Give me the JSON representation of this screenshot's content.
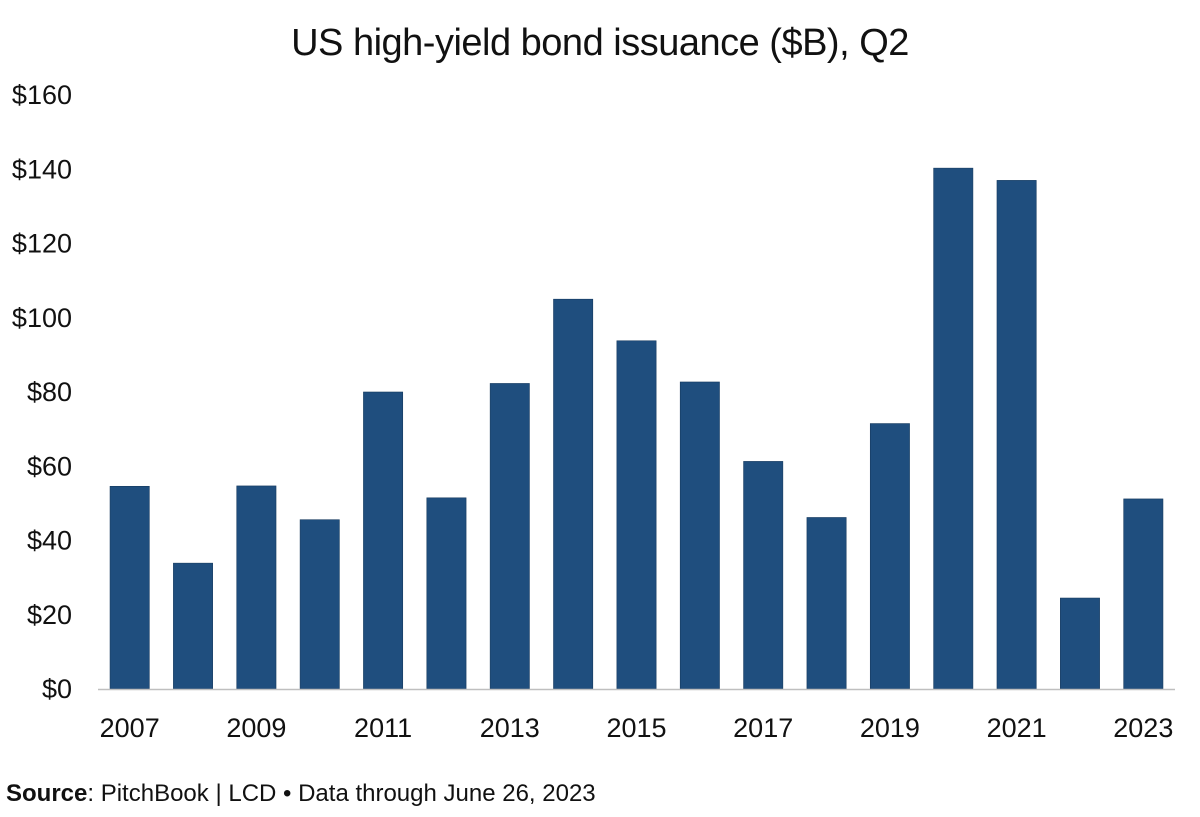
{
  "chart_data": {
    "type": "bar",
    "title": "US high-yield bond issuance ($B), Q2",
    "xlabel": "",
    "ylabel": "",
    "ylim": [
      0,
      160
    ],
    "yticks": [
      0,
      20,
      40,
      60,
      80,
      100,
      120,
      140,
      160
    ],
    "ytick_labels": [
      "$0",
      "$20",
      "$40",
      "$60",
      "$80",
      "$100",
      "$120",
      "$140",
      "$160"
    ],
    "categories": [
      "2007",
      "2008",
      "2009",
      "2010",
      "2011",
      "2012",
      "2013",
      "2014",
      "2015",
      "2016",
      "2017",
      "2018",
      "2019",
      "2020",
      "2021",
      "2022",
      "2023"
    ],
    "xtick_labels": [
      "2007",
      "",
      "2009",
      "",
      "2011",
      "",
      "2013",
      "",
      "2015",
      "",
      "2017",
      "",
      "2019",
      "",
      "2021",
      "",
      "2023"
    ],
    "values": [
      54.6,
      33.9,
      54.7,
      45.6,
      80.0,
      51.5,
      82.3,
      105.0,
      93.8,
      82.7,
      61.3,
      46.2,
      71.5,
      140.3,
      137.0,
      24.5,
      51.2
    ],
    "bar_color": "#1f4e7e",
    "grid": false,
    "legend": "none"
  },
  "source": {
    "label": "Source",
    "text": ": PitchBook | LCD • Data through June 26, 2023"
  }
}
